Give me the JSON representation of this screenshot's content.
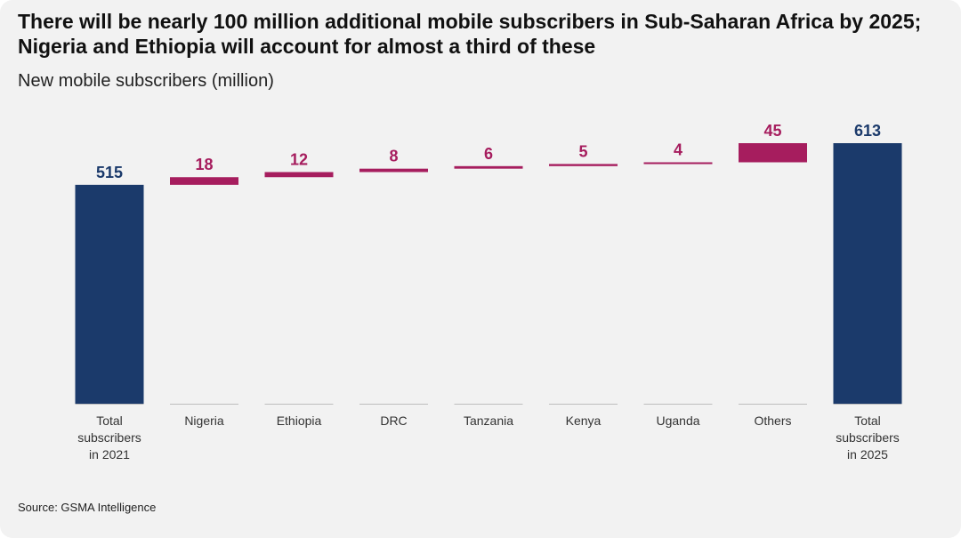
{
  "title": "There will be nearly 100 million additional mobile subscribers in Sub-Saharan Africa by 2025; Nigeria and Ethiopia will account for almost a third of these",
  "subtitle": "New mobile subscribers (million)",
  "source": "Source: GSMA Intelligence",
  "colors": {
    "total": "#1b3a6b",
    "increment": "#a61d5e",
    "baseline": "#bdbdbd"
  },
  "chart_data": {
    "type": "bar",
    "subtype": "waterfall",
    "title": "There will be nearly 100 million additional mobile subscribers in Sub-Saharan Africa by 2025; Nigeria and Ethiopia will account for almost a third of these",
    "ylabel": "New mobile subscribers (million)",
    "ylim": [
      0,
      613
    ],
    "categories": [
      [
        "Total",
        "subscribers",
        "in 2021"
      ],
      [
        "Nigeria"
      ],
      [
        "Ethiopia"
      ],
      [
        "DRC"
      ],
      [
        "Tanzania"
      ],
      [
        "Kenya"
      ],
      [
        "Uganda"
      ],
      [
        "Others"
      ],
      [
        "Total",
        "subscribers",
        "in 2025"
      ]
    ],
    "values": [
      515,
      18,
      12,
      8,
      6,
      5,
      4,
      45,
      613
    ],
    "kinds": [
      "total",
      "increment",
      "increment",
      "increment",
      "increment",
      "increment",
      "increment",
      "increment",
      "total"
    ]
  }
}
